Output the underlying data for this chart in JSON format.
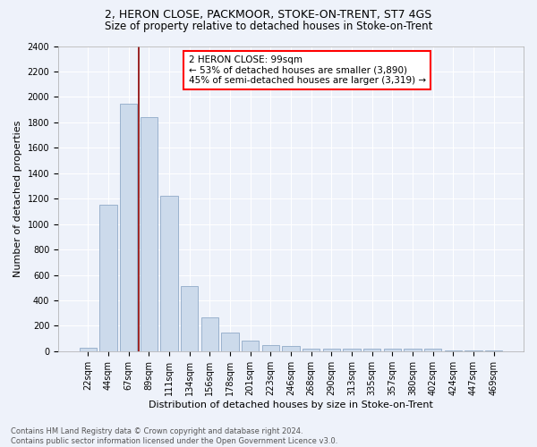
{
  "title1": "2, HERON CLOSE, PACKMOOR, STOKE-ON-TRENT, ST7 4GS",
  "title2": "Size of property relative to detached houses in Stoke-on-Trent",
  "xlabel": "Distribution of detached houses by size in Stoke-on-Trent",
  "ylabel": "Number of detached properties",
  "categories": [
    "22sqm",
    "44sqm",
    "67sqm",
    "89sqm",
    "111sqm",
    "134sqm",
    "156sqm",
    "178sqm",
    "201sqm",
    "223sqm",
    "246sqm",
    "268sqm",
    "290sqm",
    "313sqm",
    "335sqm",
    "357sqm",
    "380sqm",
    "402sqm",
    "424sqm",
    "447sqm",
    "469sqm"
  ],
  "values": [
    30,
    1150,
    1950,
    1840,
    1220,
    510,
    265,
    150,
    80,
    45,
    40,
    20,
    18,
    18,
    18,
    18,
    18,
    20,
    5,
    5,
    5
  ],
  "bar_color": "#ccdaeb",
  "bar_edge_color": "#90aac8",
  "vline_x": 2.5,
  "vline_color": "#8b0000",
  "annotation_text": "2 HERON CLOSE: 99sqm\n← 53% of detached houses are smaller (3,890)\n45% of semi-detached houses are larger (3,319) →",
  "annotation_box_color": "white",
  "annotation_box_edge_color": "red",
  "ylim": [
    0,
    2400
  ],
  "yticks": [
    0,
    200,
    400,
    600,
    800,
    1000,
    1200,
    1400,
    1600,
    1800,
    2000,
    2200,
    2400
  ],
  "footer1": "Contains HM Land Registry data © Crown copyright and database right 2024.",
  "footer2": "Contains public sector information licensed under the Open Government Licence v3.0.",
  "bg_color": "#eef2fa",
  "grid_color": "#ffffff",
  "title1_fontsize": 9,
  "title2_fontsize": 8.5,
  "xlabel_fontsize": 8,
  "ylabel_fontsize": 8,
  "tick_fontsize": 7,
  "footer_fontsize": 6,
  "annotation_fontsize": 7.5
}
